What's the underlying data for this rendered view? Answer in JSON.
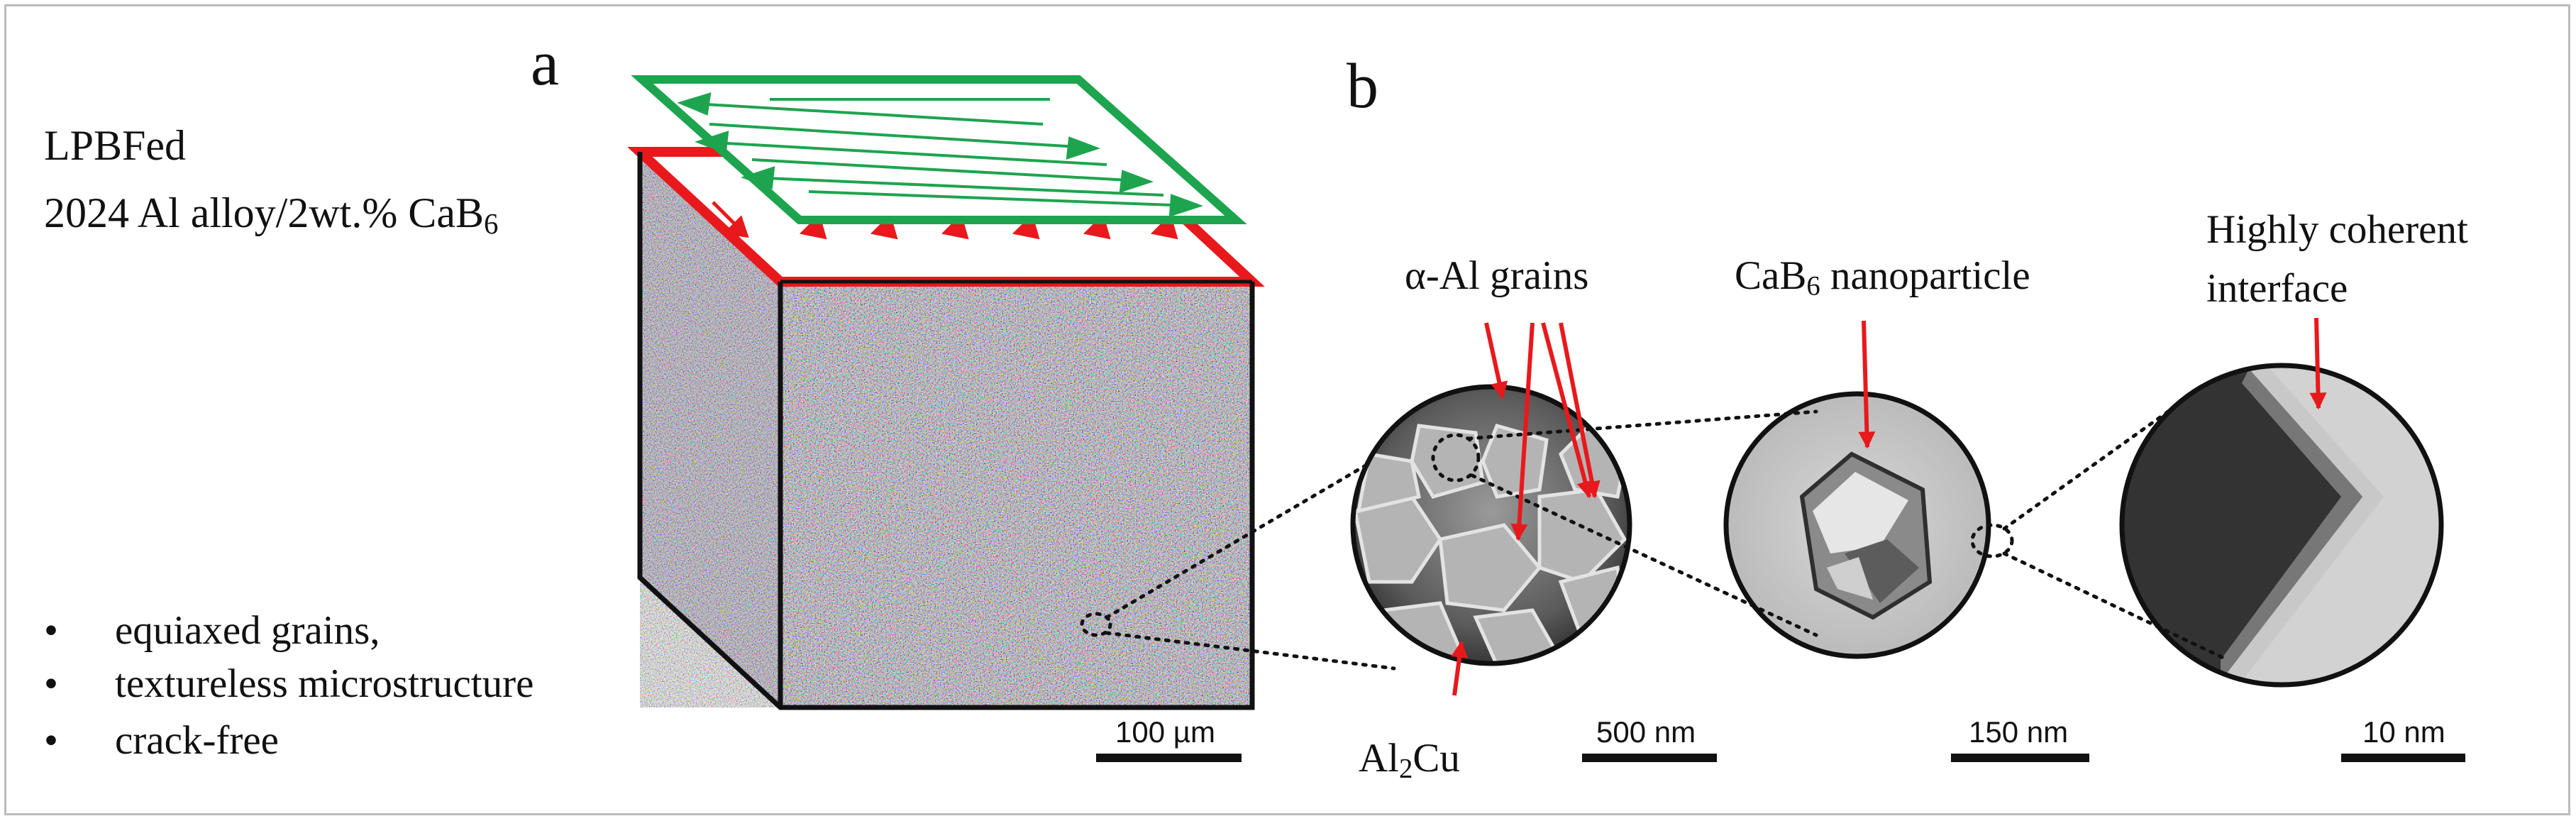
{
  "panel_a": {
    "label": "a",
    "title_line1": "LPBFed",
    "title_line2_main": "2024 Al alloy/2wt.% CaB",
    "title_line2_sub": "6",
    "bullets": [
      {
        "symbol": "•",
        "text": "equiaxed grains,"
      },
      {
        "symbol": "•",
        "text": "textureless microstructure"
      },
      {
        "symbol": "•",
        "text": "crack-free"
      }
    ],
    "scale_bar": "100 µm"
  },
  "panel_b": {
    "label": "b",
    "grains_label": "α-Al grains",
    "al2cu_main_1": "Al",
    "al2cu_sub": "2",
    "al2cu_main_2": "Cu",
    "cab6_main": "CaB",
    "cab6_sub": "6",
    "cab6_rest": " nanoparticle",
    "interface_line1": "Highly coherent",
    "interface_line2": "interface",
    "scale_bars": [
      "500 nm",
      "150 nm",
      "10 nm"
    ]
  },
  "colors": {
    "green": "#1ea44f",
    "red": "#e8191c",
    "black": "#111111",
    "frame": "#bcbcbc"
  }
}
